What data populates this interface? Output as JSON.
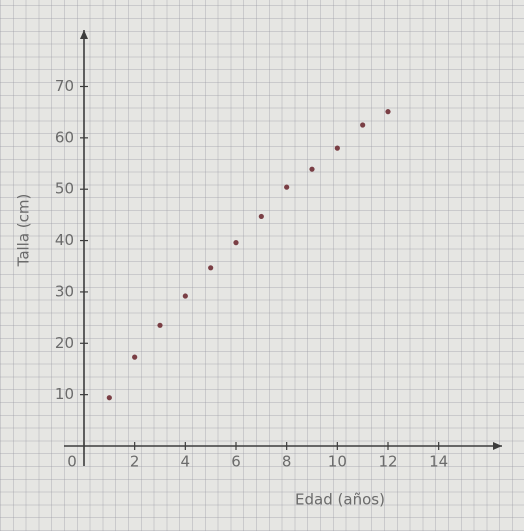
{
  "chart_data": {
    "type": "scatter",
    "x_label": "Edad (años)",
    "y_label": "Talla (cm)",
    "x": [
      1,
      2,
      3,
      4,
      5,
      6,
      7,
      8,
      9,
      10,
      11,
      12
    ],
    "series": [
      {
        "name": "Talla",
        "color": "#7a3f45",
        "values": [
          9.4,
          17.3,
          23.5,
          29.2,
          34.7,
          39.6,
          44.7,
          50.4,
          53.9,
          58,
          62.5,
          65.1
        ]
      }
    ],
    "xlim": [
      0,
      16.5
    ],
    "ylim": [
      0,
      81
    ],
    "xticks": [
      0,
      2,
      4,
      6,
      8,
      10,
      12,
      14
    ],
    "yticks": [
      10,
      20,
      30,
      40,
      50,
      60,
      70
    ]
  }
}
